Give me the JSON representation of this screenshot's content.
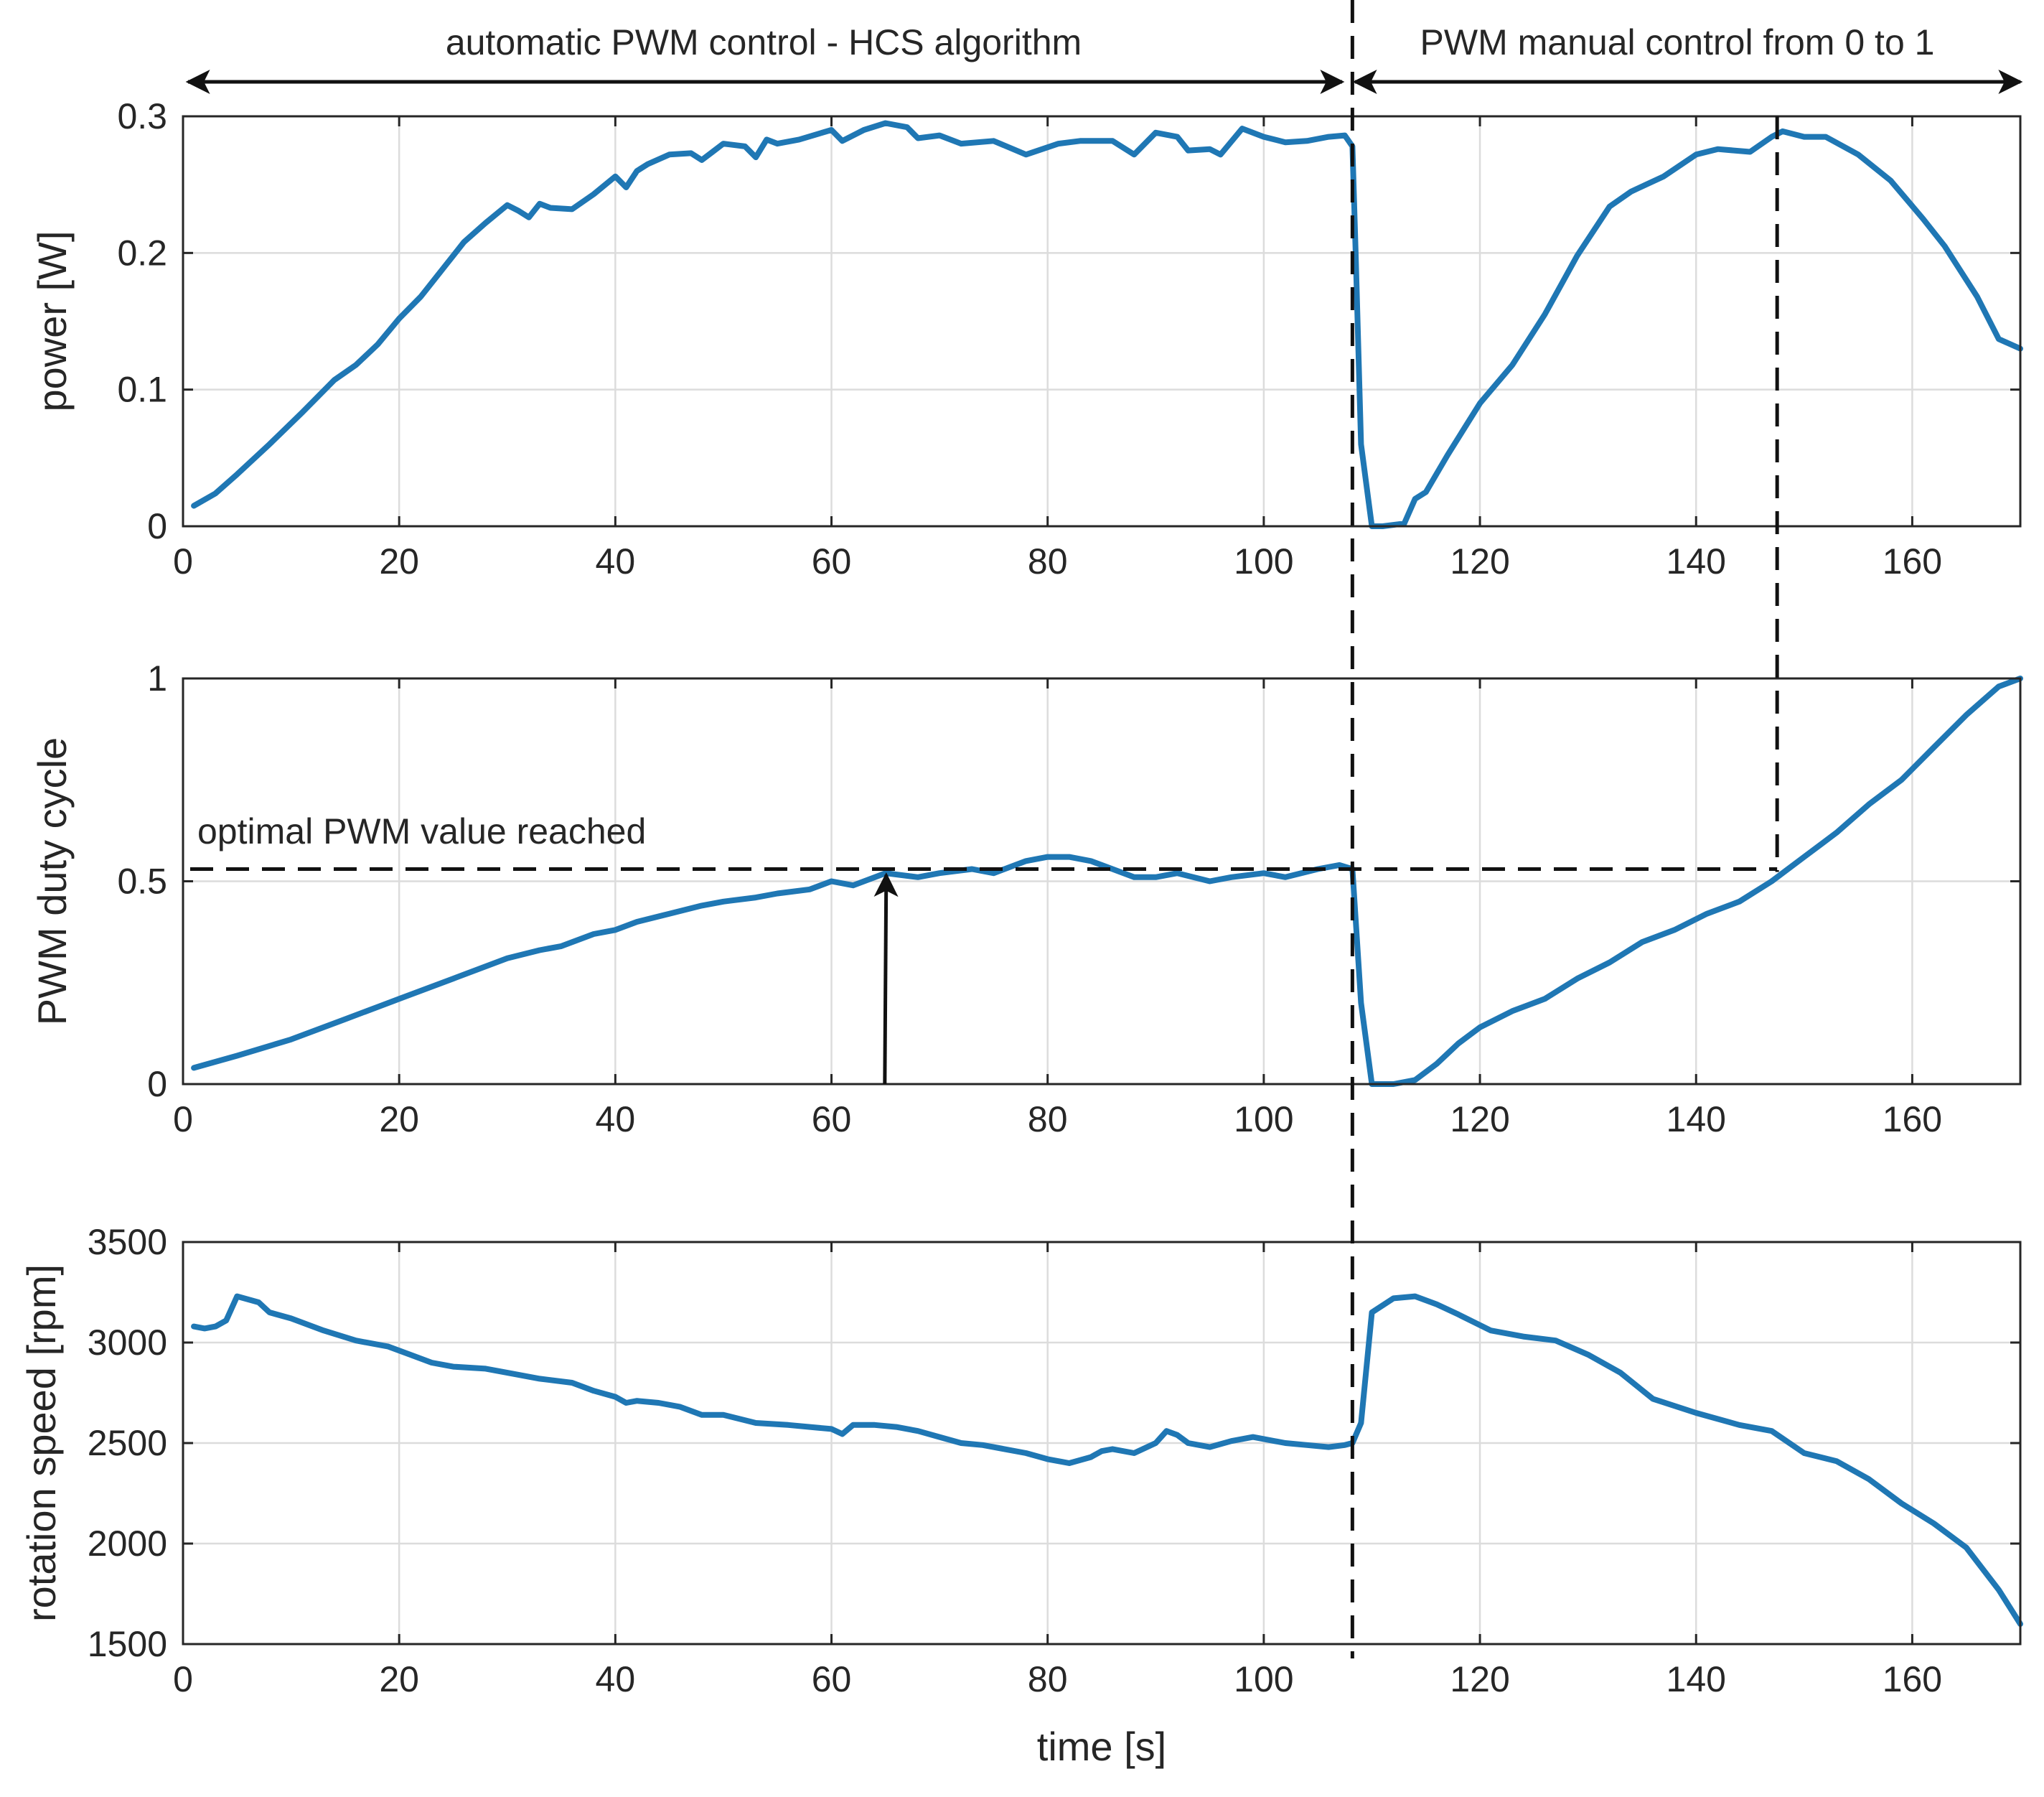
{
  "figure": {
    "annotations": {
      "auto_region": "automatic PWM control - HCS algorithm",
      "manual_region": "PWM manual control from 0 to 1",
      "optimal": "optimal PWM value reached"
    },
    "switch_time": 108.2,
    "max_power_time": 147.5,
    "optimal_pwm": 0.53,
    "arrow_time": 65
  },
  "colors": {
    "series": "#1f77b4",
    "annotation": "#111111"
  },
  "chart_data": [
    {
      "type": "line",
      "title": "",
      "xlabel": "",
      "ylabel": "power [W]",
      "xlim": [
        0,
        170
      ],
      "ylim": [
        0,
        0.3
      ],
      "xticks": [
        0,
        20,
        40,
        60,
        80,
        100,
        120,
        140,
        160
      ],
      "yticks": [
        0,
        0.1,
        0.2,
        0.3
      ],
      "ytick_labels": [
        "0",
        "0.1",
        "0.2",
        "0.3"
      ],
      "grid": true,
      "series": [
        {
          "name": "power",
          "x": [
            1,
            3,
            5,
            8,
            11,
            14,
            16,
            18,
            20,
            22,
            24,
            26,
            28,
            30,
            31,
            32,
            33,
            34,
            36,
            38,
            40,
            41,
            42,
            43,
            45,
            47,
            48,
            49,
            50,
            52,
            53,
            54,
            55,
            57,
            60,
            61,
            63,
            65,
            67,
            68,
            70,
            72,
            75,
            78,
            81,
            83,
            86,
            88,
            90,
            92,
            93,
            95,
            96,
            98,
            100,
            102,
            104,
            106,
            107.5,
            108.2,
            108.5,
            109,
            110,
            111,
            113,
            114,
            115,
            117,
            120,
            123,
            126,
            129,
            131,
            132,
            134,
            137,
            140,
            142,
            145,
            147,
            148,
            150,
            152,
            155,
            158,
            161,
            163,
            166,
            168,
            170
          ],
          "values": [
            0.015,
            0.024,
            0.038,
            0.06,
            0.083,
            0.107,
            0.118,
            0.133,
            0.152,
            0.168,
            0.188,
            0.208,
            0.222,
            0.235,
            0.231,
            0.226,
            0.236,
            0.233,
            0.232,
            0.243,
            0.256,
            0.248,
            0.26,
            0.265,
            0.272,
            0.273,
            0.268,
            0.274,
            0.28,
            0.278,
            0.27,
            0.283,
            0.28,
            0.283,
            0.29,
            0.282,
            0.29,
            0.295,
            0.292,
            0.284,
            0.286,
            0.28,
            0.282,
            0.272,
            0.28,
            0.282,
            0.282,
            0.272,
            0.288,
            0.285,
            0.275,
            0.276,
            0.272,
            0.291,
            0.285,
            0.281,
            0.282,
            0.285,
            0.286,
            0.278,
            0.2,
            0.06,
            0.0,
            0.0,
            0.002,
            0.02,
            0.025,
            0.052,
            0.09,
            0.118,
            0.155,
            0.198,
            0.222,
            0.234,
            0.245,
            0.256,
            0.272,
            0.276,
            0.274,
            0.285,
            0.289,
            0.285,
            0.285,
            0.272,
            0.253,
            0.225,
            0.205,
            0.168,
            0.137,
            0.13
          ]
        }
      ]
    },
    {
      "type": "line",
      "title": "",
      "xlabel": "",
      "ylabel": "PWM duty cycle",
      "xlim": [
        0,
        170
      ],
      "ylim": [
        0,
        1
      ],
      "xticks": [
        0,
        20,
        40,
        60,
        80,
        100,
        120,
        140,
        160
      ],
      "yticks": [
        0,
        0.5,
        1
      ],
      "ytick_labels": [
        "0",
        "0.5",
        "1"
      ],
      "grid": true,
      "series": [
        {
          "name": "PWM duty cycle",
          "x": [
            1,
            5,
            10,
            15,
            20,
            25,
            30,
            33,
            35,
            38,
            40,
            42,
            45,
            48,
            50,
            53,
            55,
            58,
            60,
            62,
            65,
            68,
            70,
            73,
            75,
            78,
            80,
            82,
            84,
            86,
            88,
            90,
            92,
            95,
            97,
            100,
            102,
            105,
            107,
            108.2,
            109,
            110,
            112,
            114,
            116,
            118,
            120,
            123,
            126,
            129,
            132,
            135,
            138,
            141,
            144,
            147,
            150,
            153,
            156,
            159,
            162,
            165,
            168,
            170
          ],
          "values": [
            0.04,
            0.07,
            0.11,
            0.16,
            0.21,
            0.26,
            0.31,
            0.33,
            0.34,
            0.37,
            0.38,
            0.4,
            0.42,
            0.44,
            0.45,
            0.46,
            0.47,
            0.48,
            0.5,
            0.49,
            0.52,
            0.51,
            0.52,
            0.53,
            0.52,
            0.55,
            0.56,
            0.56,
            0.55,
            0.53,
            0.51,
            0.51,
            0.52,
            0.5,
            0.51,
            0.52,
            0.51,
            0.53,
            0.54,
            0.53,
            0.2,
            0.0,
            0.0,
            0.01,
            0.05,
            0.1,
            0.14,
            0.18,
            0.21,
            0.26,
            0.3,
            0.35,
            0.38,
            0.42,
            0.45,
            0.5,
            0.56,
            0.62,
            0.69,
            0.75,
            0.83,
            0.91,
            0.98,
            1.0
          ]
        }
      ]
    },
    {
      "type": "line",
      "title": "",
      "xlabel": "time [s]",
      "ylabel": "rotation speed [rpm]",
      "xlim": [
        0,
        170
      ],
      "ylim": [
        1500,
        3500
      ],
      "xticks": [
        0,
        20,
        40,
        60,
        80,
        100,
        120,
        140,
        160
      ],
      "yticks": [
        1500,
        2000,
        2500,
        3000,
        3500
      ],
      "ytick_labels": [
        "1500",
        "2000",
        "2500",
        "3000",
        "3500"
      ],
      "grid": true,
      "series": [
        {
          "name": "rotation speed",
          "x": [
            1,
            2,
            3,
            4,
            5,
            7,
            8,
            10,
            13,
            16,
            19,
            21,
            23,
            25,
            28,
            31,
            33,
            36,
            38,
            40,
            41,
            42,
            44,
            46,
            48,
            50,
            53,
            56,
            58,
            60,
            61,
            62,
            64,
            66,
            68,
            70,
            72,
            74,
            76,
            78,
            80,
            82,
            84,
            85,
            86,
            88,
            90,
            91,
            92,
            93,
            95,
            97,
            99,
            102,
            104,
            106,
            107.5,
            108.2,
            109,
            110,
            112,
            114,
            116,
            118,
            121,
            124,
            127,
            130,
            133,
            136,
            140,
            144,
            147,
            150,
            153,
            156,
            159,
            162,
            165,
            168,
            170
          ],
          "values": [
            3080,
            3070,
            3080,
            3110,
            3230,
            3200,
            3150,
            3120,
            3060,
            3010,
            2980,
            2940,
            2900,
            2880,
            2870,
            2840,
            2820,
            2800,
            2760,
            2730,
            2700,
            2710,
            2700,
            2680,
            2640,
            2640,
            2600,
            2590,
            2580,
            2570,
            2545,
            2590,
            2590,
            2580,
            2560,
            2530,
            2500,
            2490,
            2470,
            2450,
            2420,
            2400,
            2430,
            2460,
            2470,
            2450,
            2500,
            2560,
            2540,
            2500,
            2480,
            2510,
            2530,
            2500,
            2490,
            2480,
            2490,
            2500,
            2600,
            3150,
            3220,
            3230,
            3190,
            3140,
            3060,
            3030,
            3010,
            2940,
            2850,
            2720,
            2650,
            2590,
            2560,
            2450,
            2410,
            2320,
            2200,
            2100,
            1980,
            1770,
            1600
          ]
        }
      ]
    }
  ]
}
